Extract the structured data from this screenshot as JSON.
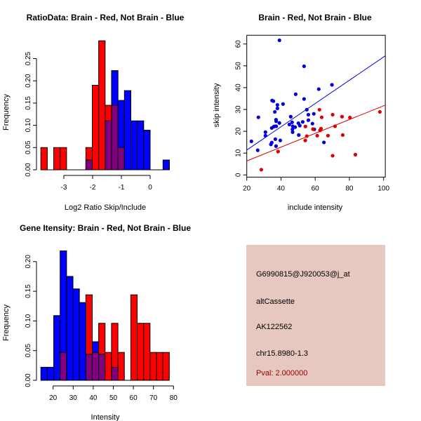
{
  "chart_data": [
    {
      "type": "bar",
      "id": "ratio",
      "title": "RatioData: Brain - Red, Not Brain - Blue",
      "xlabel": "Log2 Ratio Skip/Include",
      "ylabel": "Frequency",
      "bin_start": -3.8,
      "bin_width": 0.2235,
      "xticks": [
        -3,
        -2,
        -1,
        0
      ],
      "yticks": [
        0,
        0.05,
        0.1,
        0.15,
        0.2,
        0.25
      ],
      "ytick_labels": [
        "0.00",
        "0.05",
        "0.10",
        "0.15",
        "0.20",
        "0.25"
      ],
      "series": [
        {
          "name": "Brain",
          "color": "#ff0000",
          "values": [
            0.05,
            0,
            0.05,
            0.05,
            0,
            0,
            0,
            0.05,
            0.19,
            0.29,
            0.145,
            0.145,
            0.05,
            0,
            0,
            0,
            0,
            0,
            0,
            0
          ]
        },
        {
          "name": "Not Brain",
          "color": "#0000ff",
          "values": [
            0,
            0,
            0,
            0,
            0,
            0,
            0,
            0.022,
            0,
            0,
            0.11,
            0.223,
            0.156,
            0.178,
            0.11,
            0.11,
            0.089,
            0,
            0,
            0.022
          ]
        }
      ],
      "overlap_color": "#800080"
    },
    {
      "type": "scatter",
      "id": "scatter",
      "title": "Brain - Red, Not Brain - Blue",
      "xlabel": "include intensity",
      "ylabel": "skip intensity",
      "xlim": [
        20,
        101
      ],
      "ylim": [
        -1,
        64
      ],
      "xticks": [
        20,
        40,
        60,
        80,
        100
      ],
      "yticks": [
        0,
        10,
        20,
        30,
        40,
        50,
        60
      ],
      "series": [
        {
          "name": "Not Brain",
          "color": "#0000dd",
          "fit": {
            "slope": 0.533,
            "intercept": 0.74
          },
          "points": [
            [
              22.7,
              15.4
            ],
            [
              26.4,
              11.3
            ],
            [
              26.8,
              26.4
            ],
            [
              30.9,
              19.6
            ],
            [
              30.9,
              18.0
            ],
            [
              34.1,
              14.0
            ],
            [
              34.6,
              14.8
            ],
            [
              34.6,
              21.5
            ],
            [
              34.8,
              34.1
            ],
            [
              35.6,
              33.8
            ],
            [
              35.7,
              22.1
            ],
            [
              36.4,
              28.9
            ],
            [
              36.5,
              22.3
            ],
            [
              36.7,
              16.4
            ],
            [
              37.1,
              13.2
            ],
            [
              37.1,
              25.3
            ],
            [
              37.2,
              24.6
            ],
            [
              37.2,
              22.3
            ],
            [
              37.9,
              32.1
            ],
            [
              37.9,
              30.5
            ],
            [
              39.1,
              61.7
            ],
            [
              39.1,
              23.8
            ],
            [
              39.6,
              15.8
            ],
            [
              41.2,
              32.5
            ],
            [
              44.9,
              23.1
            ],
            [
              45.7,
              26.7
            ],
            [
              46.5,
              24.1
            ],
            [
              46.7,
              20.9
            ],
            [
              46.8,
              19.6
            ],
            [
              46.9,
              22.3
            ],
            [
              48.3,
              21.9
            ],
            [
              48.6,
              37.0
            ],
            [
              50.2,
              23.7
            ],
            [
              50.4,
              18.3
            ],
            [
              51.0,
              22.6
            ],
            [
              52.7,
              24.3
            ],
            [
              53.5,
              49.8
            ],
            [
              53.5,
              34.8
            ],
            [
              55.1,
              29.9
            ],
            [
              56.0,
              27.6
            ],
            [
              56.0,
              25.1
            ],
            [
              58.4,
              23.5
            ],
            [
              59.2,
              28.0
            ],
            [
              59.5,
              20.9
            ],
            [
              62.1,
              39.3
            ],
            [
              65.1,
              14.9
            ],
            [
              69.8,
              41.3
            ]
          ]
        },
        {
          "name": "Brain",
          "color": "#dd0000",
          "fit": {
            "slope": 0.316,
            "intercept": 0.08
          },
          "points": [
            [
              28.5,
              2.4
            ],
            [
              38.3,
              10.7
            ],
            [
              54.3,
              22.2
            ],
            [
              54.2,
              15.8
            ],
            [
              55.1,
              17.8
            ],
            [
              58.7,
              21.0
            ],
            [
              61.2,
              18.0
            ],
            [
              62.5,
              29.9
            ],
            [
              62.8,
              20.4
            ],
            [
              63.4,
              21.2
            ],
            [
              63.8,
              26.4
            ],
            [
              67.5,
              18.0
            ],
            [
              70.2,
              27.6
            ],
            [
              70.2,
              8.8
            ],
            [
              71.6,
              22.3
            ],
            [
              75.7,
              26.7
            ],
            [
              76.1,
              18.3
            ],
            [
              80.3,
              26.3
            ],
            [
              83.5,
              9.3
            ],
            [
              97.8,
              28.9
            ]
          ]
        }
      ]
    },
    {
      "type": "bar",
      "id": "intensity",
      "title": "Gene Itensity: Brain - Red, Not Brain - Blue",
      "xlabel": "Intensity",
      "ylabel": "Frequency",
      "bin_start": 13.9,
      "bin_width": 3.2,
      "xticks": [
        20,
        30,
        40,
        50,
        60,
        70,
        80
      ],
      "yticks": [
        0,
        0.05,
        0.1,
        0.15,
        0.2
      ],
      "ytick_labels": [
        "0.00",
        "0.05",
        "0.10",
        "0.15",
        "0.20"
      ],
      "series": [
        {
          "name": "Brain",
          "color": "#ff0000",
          "values": [
            0,
            0,
            0,
            0.047,
            0,
            0,
            0,
            0.144,
            0.047,
            0.096,
            0.047,
            0.096,
            0.047,
            0,
            0.144,
            0.096,
            0.096,
            0.047,
            0.047,
            0.047
          ]
        },
        {
          "name": "Not Brain",
          "color": "#0000ff",
          "values": [
            0.022,
            0.022,
            0.109,
            0.218,
            0.175,
            0.154,
            0.131,
            0.044,
            0.065,
            0.044,
            0,
            0.022,
            0,
            0,
            0,
            0,
            0,
            0,
            0,
            0
          ]
        }
      ],
      "overlap_color": "#800080"
    }
  ],
  "info": {
    "probe": "G6990815@J920053@j_at",
    "event_type": "altCassette",
    "accession": "AK122562",
    "location": "chr15.8980-1.3",
    "pval": "Pval: 2.000000"
  }
}
